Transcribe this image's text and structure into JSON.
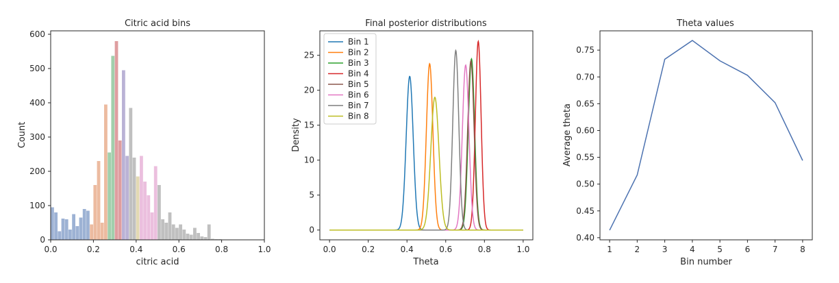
{
  "chart_data": [
    {
      "type": "bar",
      "title": "Citric acid bins",
      "xlabel": "citric acid",
      "ylabel": "Count",
      "xlim": [
        0.0,
        1.0
      ],
      "ylim": [
        0,
        610
      ],
      "x_ticks": [
        "0.0",
        "0.2",
        "0.4",
        "0.6",
        "0.8",
        "1.0"
      ],
      "y_ticks": [
        "0",
        "100",
        "200",
        "300",
        "400",
        "500",
        "600"
      ],
      "grid": false,
      "legend": false,
      "bin_width": 0.0167,
      "bars": [
        {
          "x": 0.0,
          "h": 95,
          "bin": 1
        },
        {
          "x": 0.0167,
          "h": 80,
          "bin": 1
        },
        {
          "x": 0.0333,
          "h": 25,
          "bin": 1
        },
        {
          "x": 0.05,
          "h": 62,
          "bin": 1
        },
        {
          "x": 0.0667,
          "h": 60,
          "bin": 1
        },
        {
          "x": 0.0833,
          "h": 30,
          "bin": 1
        },
        {
          "x": 0.1,
          "h": 75,
          "bin": 1
        },
        {
          "x": 0.1167,
          "h": 40,
          "bin": 1
        },
        {
          "x": 0.1333,
          "h": 65,
          "bin": 1
        },
        {
          "x": 0.15,
          "h": 90,
          "bin": 1
        },
        {
          "x": 0.1667,
          "h": 85,
          "bin": 1
        },
        {
          "x": 0.1833,
          "h": 45,
          "bin": 2
        },
        {
          "x": 0.2,
          "h": 160,
          "bin": 2
        },
        {
          "x": 0.2167,
          "h": 230,
          "bin": 2
        },
        {
          "x": 0.2333,
          "h": 50,
          "bin": 2
        },
        {
          "x": 0.25,
          "h": 395,
          "bin": 2
        },
        {
          "x": 0.2667,
          "h": 255,
          "bin": 3
        },
        {
          "x": 0.2833,
          "h": 537,
          "bin": 3
        },
        {
          "x": 0.3,
          "h": 580,
          "bin": 4
        },
        {
          "x": 0.3167,
          "h": 290,
          "bin": 4
        },
        {
          "x": 0.3333,
          "h": 495,
          "bin": 5
        },
        {
          "x": 0.35,
          "h": 245,
          "bin": 5
        },
        {
          "x": 0.3667,
          "h": 385,
          "bin": 7
        },
        {
          "x": 0.3833,
          "h": 240,
          "bin": 7
        },
        {
          "x": 0.4,
          "h": 185,
          "bin": 8
        },
        {
          "x": 0.4167,
          "h": 245,
          "bin": 6
        },
        {
          "x": 0.4333,
          "h": 170,
          "bin": 6
        },
        {
          "x": 0.45,
          "h": 130,
          "bin": 6
        },
        {
          "x": 0.4667,
          "h": 80,
          "bin": 6
        },
        {
          "x": 0.4833,
          "h": 215,
          "bin": 6
        },
        {
          "x": 0.5,
          "h": 160,
          "bin": 7
        },
        {
          "x": 0.5167,
          "h": 60,
          "bin": 7
        },
        {
          "x": 0.5333,
          "h": 50,
          "bin": 7
        },
        {
          "x": 0.55,
          "h": 80,
          "bin": 7
        },
        {
          "x": 0.5667,
          "h": 45,
          "bin": 7
        },
        {
          "x": 0.5833,
          "h": 35,
          "bin": 7
        },
        {
          "x": 0.6,
          "h": 45,
          "bin": 7
        },
        {
          "x": 0.6167,
          "h": 30,
          "bin": 7
        },
        {
          "x": 0.6333,
          "h": 18,
          "bin": 7
        },
        {
          "x": 0.65,
          "h": 15,
          "bin": 7
        },
        {
          "x": 0.6667,
          "h": 35,
          "bin": 7
        },
        {
          "x": 0.6833,
          "h": 20,
          "bin": 7
        },
        {
          "x": 0.7,
          "h": 10,
          "bin": 7
        },
        {
          "x": 0.7167,
          "h": 8,
          "bin": 7
        },
        {
          "x": 0.7333,
          "h": 45,
          "bin": 7
        },
        {
          "x": 0.75,
          "h": 3,
          "bin": 7
        },
        {
          "x": 0.7667,
          "h": 2,
          "bin": 7
        },
        {
          "x": 0.7833,
          "h": 2,
          "bin": 7
        },
        {
          "x": 0.8,
          "h": 1,
          "bin": 7
        },
        {
          "x": 0.8167,
          "h": 1,
          "bin": 7
        }
      ],
      "bin_colors": {
        "1": "#4c72b0",
        "2": "#dd8452",
        "3": "#55a868",
        "4": "#c44e52",
        "5": "#8172b3",
        "6": "#da8bc3",
        "7": "#8c8c8c",
        "8": "#ccb974"
      },
      "bar_opacity": 0.55
    },
    {
      "type": "line",
      "title": "Final posterior distributions",
      "xlabel": "Theta",
      "ylabel": "Density",
      "xlim": [
        -0.05,
        1.05
      ],
      "ylim": [
        -1.4,
        28.5
      ],
      "x_ticks": [
        "0.0",
        "0.2",
        "0.4",
        "0.6",
        "0.8",
        "1.0"
      ],
      "y_ticks": [
        "0",
        "5",
        "10",
        "15",
        "20",
        "25"
      ],
      "legend_position": "top-left",
      "grid": false,
      "series": [
        {
          "name": "Bin 1",
          "color": "#1f77b4",
          "mean": 0.414,
          "peak": 22.0
        },
        {
          "name": "Bin 2",
          "color": "#ff7f0e",
          "mean": 0.517,
          "peak": 23.8
        },
        {
          "name": "Bin 3",
          "color": "#2ca02c",
          "mean": 0.733,
          "peak": 24.5
        },
        {
          "name": "Bin 4",
          "color": "#d62728",
          "mean": 0.768,
          "peak": 27.0
        },
        {
          "name": "Bin 5",
          "color": "#8c564b",
          "mean": 0.73,
          "peak": 24.2
        },
        {
          "name": "Bin 6",
          "color": "#e377c2",
          "mean": 0.703,
          "peak": 23.6
        },
        {
          "name": "Bin 7",
          "color": "#7f7f7f",
          "mean": 0.652,
          "peak": 25.7
        },
        {
          "name": "Bin 8",
          "color": "#bcbd22",
          "mean": 0.544,
          "peak": 19.0
        }
      ]
    },
    {
      "type": "line",
      "title": "Theta values",
      "xlabel": "Bin number",
      "ylabel": "Average theta",
      "xlim": [
        0.65,
        8.35
      ],
      "ylim": [
        0.396,
        0.786
      ],
      "x_ticks": [
        "1",
        "2",
        "3",
        "4",
        "5",
        "6",
        "7",
        "8"
      ],
      "y_ticks": [
        "0.40",
        "0.45",
        "0.50",
        "0.55",
        "0.60",
        "0.65",
        "0.70",
        "0.75"
      ],
      "grid": false,
      "x": [
        1,
        2,
        3,
        4,
        5,
        6,
        7,
        8
      ],
      "series": [
        {
          "color": "#4c72b0",
          "values": [
            0.414,
            0.517,
            0.733,
            0.768,
            0.73,
            0.703,
            0.652,
            0.544
          ]
        }
      ]
    }
  ]
}
